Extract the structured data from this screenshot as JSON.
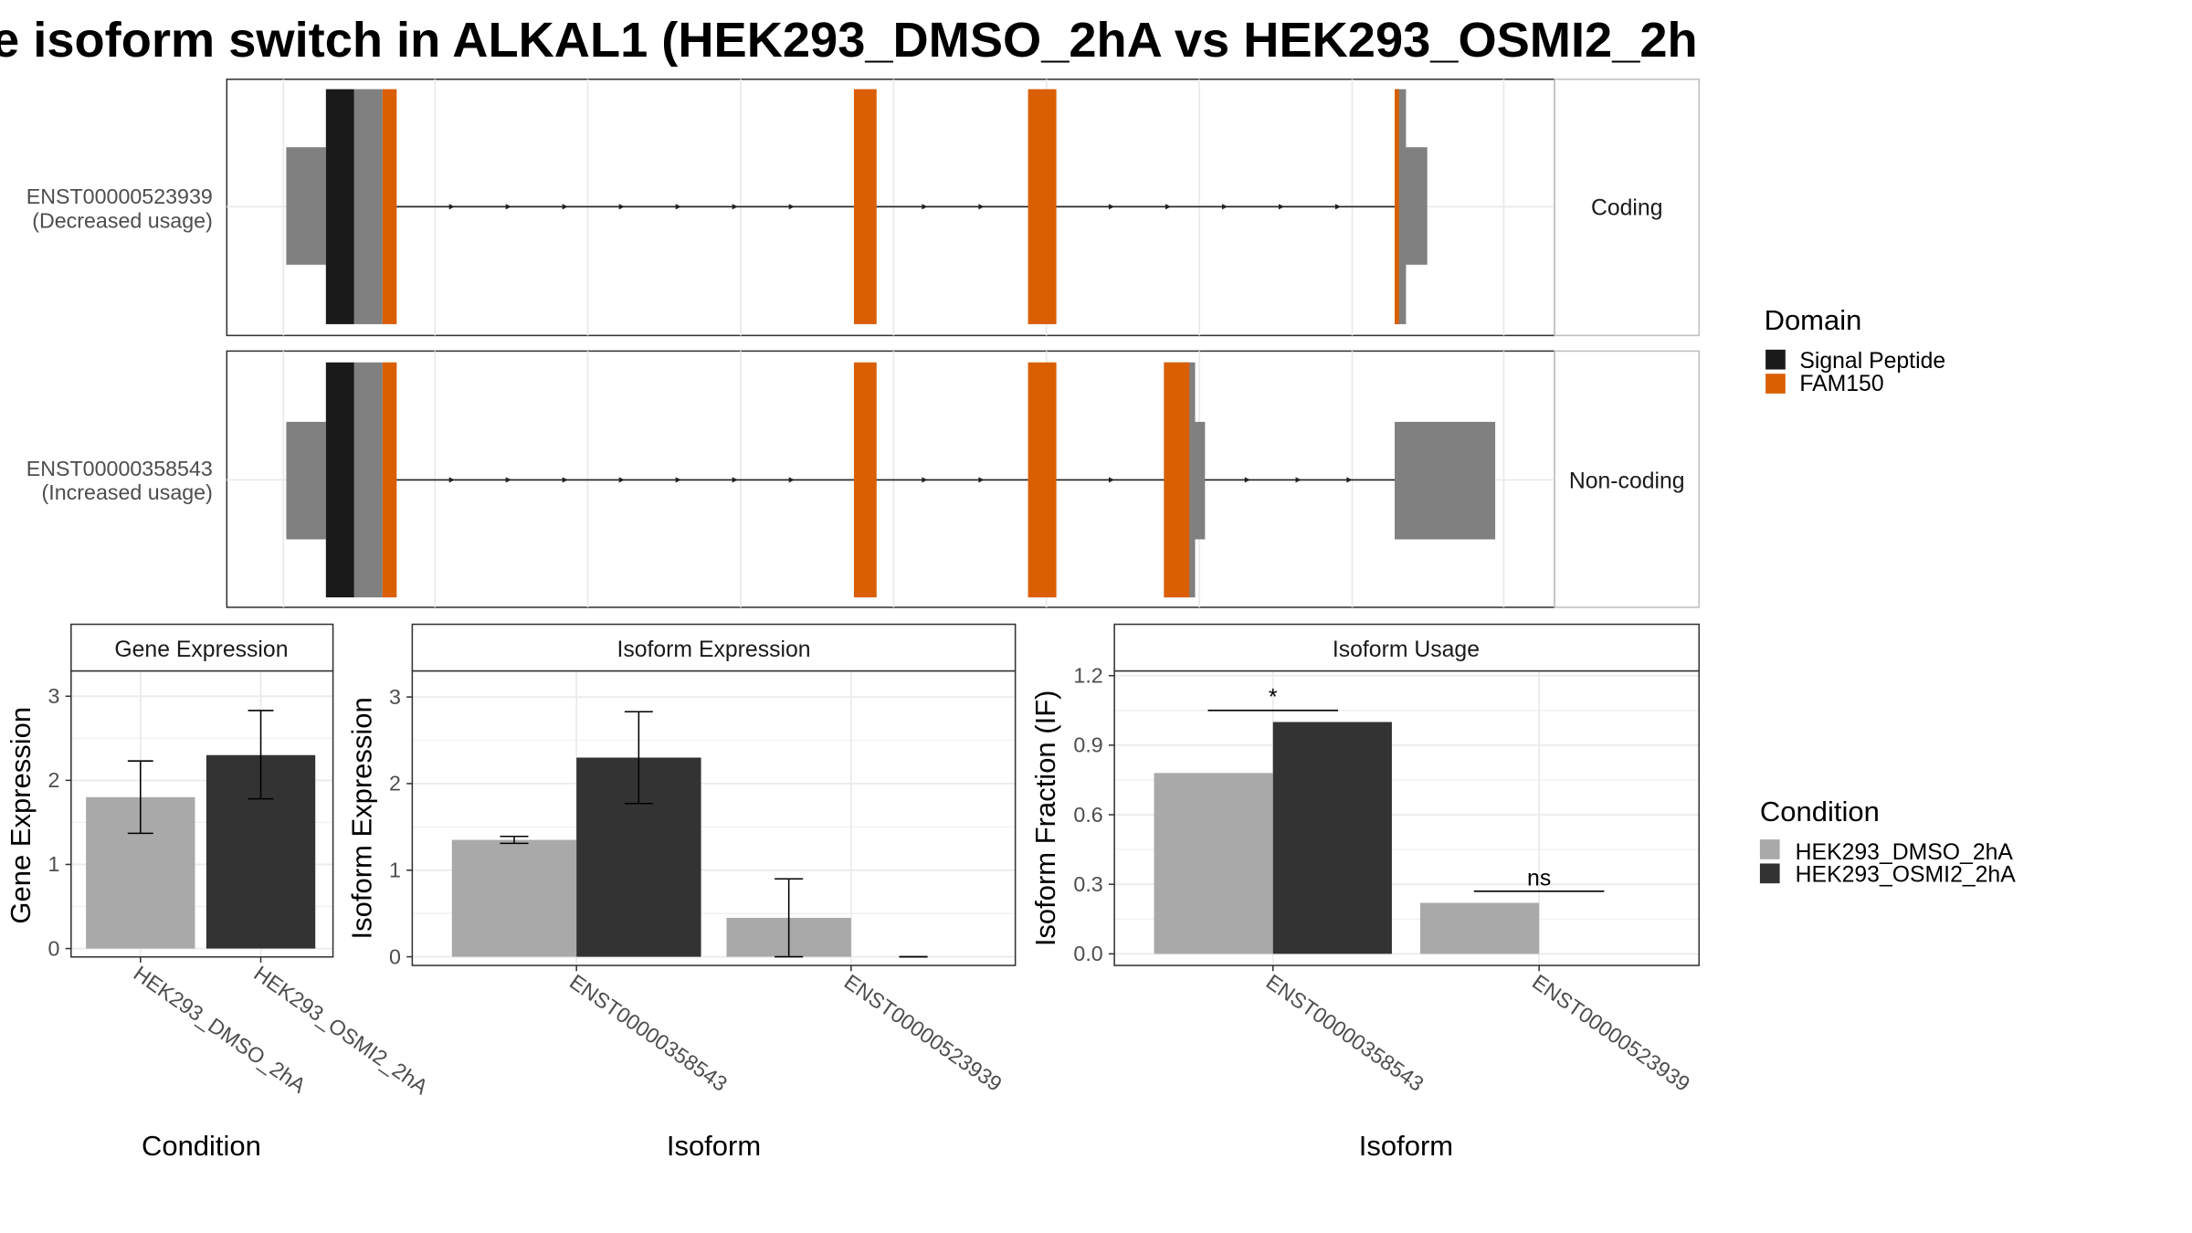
{
  "title": "e isoform switch in ALKAL1 (HEK293_DMSO_2hA vs HEK293_OSMI2_2h",
  "colors": {
    "signal_peptide": "#1a1a1a",
    "fam150": "#d95f02",
    "exon": "#808080",
    "dmso": "#a9a9a9",
    "osmi2": "#333333"
  },
  "chart_data": [
    {
      "type": "gene-structure",
      "tracks": [
        {
          "id": "ENST00000523939",
          "label": "ENST00000523939",
          "sublabel": "(Decreased usage)",
          "strip": "Coding"
        },
        {
          "id": "ENST00000358543",
          "label": "ENST00000358543",
          "sublabel": "(Increased usage)",
          "strip": "Non-coding"
        }
      ],
      "legend": {
        "title": "Domain",
        "entries": [
          {
            "name": "Signal Peptide",
            "color": "#1a1a1a"
          },
          {
            "name": "FAM150",
            "color": "#d95f02"
          }
        ]
      }
    },
    {
      "type": "bar",
      "title": "Gene Expression",
      "xlabel": "Condition",
      "ylabel": "Gene Expression",
      "ylim": [
        -0.1,
        3.3
      ],
      "yticks": [
        0,
        1,
        2,
        3
      ],
      "categories": [
        "HEK293_DMSO_2hA",
        "HEK293_OSMI2_2hA"
      ],
      "values": [
        1.8,
        2.3
      ],
      "error": [
        [
          1.37,
          2.23
        ],
        [
          1.78,
          2.83
        ]
      ]
    },
    {
      "type": "bar",
      "title": "Isoform Expression",
      "xlabel": "Isoform",
      "ylabel": "Isoform Expression",
      "ylim": [
        -0.1,
        3.3
      ],
      "yticks": [
        0,
        1,
        2,
        3
      ],
      "categories": [
        "ENST00000358543",
        "ENST00000523939"
      ],
      "series": [
        {
          "name": "HEK293_DMSO_2hA",
          "values": [
            1.35,
            0.45
          ],
          "error": [
            [
              1.31,
              1.39
            ],
            [
              0.0,
              0.9
            ]
          ]
        },
        {
          "name": "HEK293_OSMI2_2hA",
          "values": [
            2.3,
            0.0
          ],
          "error": [
            [
              1.77,
              2.83
            ],
            [
              0.0,
              0.0
            ]
          ]
        }
      ]
    },
    {
      "type": "bar",
      "title": "Isoform Usage",
      "xlabel": "Isoform",
      "ylabel": "Isoform Fraction (IF)",
      "ylim": [
        -0.05,
        1.22
      ],
      "yticks": [
        "0.0",
        "0.3",
        "0.6",
        "0.9",
        "1.2"
      ],
      "categories": [
        "ENST00000358543",
        "ENST00000523939"
      ],
      "series": [
        {
          "name": "HEK293_DMSO_2hA",
          "values": [
            0.78,
            0.22
          ]
        },
        {
          "name": "HEK293_OSMI2_2hA",
          "values": [
            1.0,
            0.0
          ]
        }
      ],
      "significance": [
        {
          "category": "ENST00000358543",
          "label": "*",
          "y": 1.05
        },
        {
          "category": "ENST00000523939",
          "label": "ns",
          "y": 0.27
        }
      ],
      "legend": {
        "title": "Condition",
        "entries": [
          {
            "name": "HEK293_DMSO_2hA",
            "color": "#a9a9a9"
          },
          {
            "name": "HEK293_OSMI2_2hA",
            "color": "#333333"
          }
        ]
      }
    }
  ]
}
